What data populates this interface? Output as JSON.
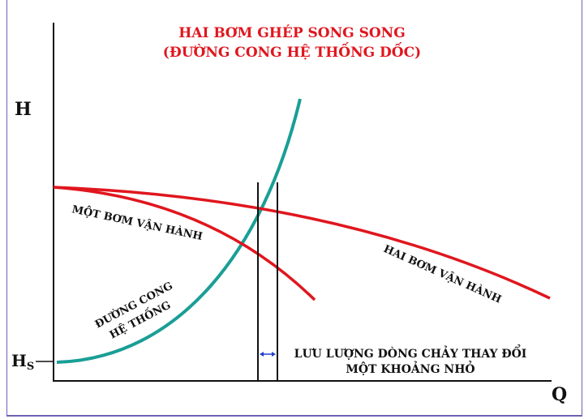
{
  "title_line1": "HAI BƠM GHÉP SONG SONG",
  "title_line2": "(ĐƯỜNG CONG HỆ THỐNG DỐC)",
  "axis_y_label": "H",
  "axis_x_label": "Q",
  "hs_label": "H",
  "hs_subscript": "S",
  "one_pump_label": "MỘT BƠM VẬN HÀNH",
  "two_pump_label": "HAI BƠM VẬN HÀNH",
  "system_curve_line1": "ĐƯỜNG CONG",
  "system_curve_line2": "HỆ THỐNG",
  "flow_change_line1": "LƯU LƯỢNG DÒNG CHẢY THAY ĐỔI",
  "flow_change_line2": "MỘT KHOẢNG NHỎ",
  "colors": {
    "title": "#e0161e",
    "pump_curves": "#e0161e",
    "system_curve": "#1a9e96",
    "arrow": "#1f3fd1",
    "axes": "#111111"
  }
}
